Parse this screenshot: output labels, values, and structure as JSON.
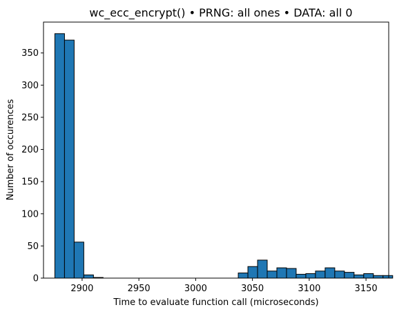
{
  "chart_data": {
    "type": "bar",
    "title": "wc_ecc_encrypt() • PRNG: all ones • DATA: all 0",
    "xlabel": "Time to evaluate function call (microseconds)",
    "ylabel": "Number of occurences",
    "xlim": [
      2866,
      3170
    ],
    "ylim": [
      0,
      398
    ],
    "xticks": [
      2900,
      2950,
      3000,
      3050,
      3100,
      3150
    ],
    "yticks": [
      0,
      50,
      100,
      150,
      200,
      250,
      300,
      350
    ],
    "bin_width": 8.5,
    "bin_start": 2876,
    "values": [
      380,
      370,
      56,
      5,
      1,
      0,
      0,
      0,
      0,
      0,
      0,
      0,
      0,
      0,
      0,
      0,
      0,
      0,
      0,
      8,
      18,
      28,
      11,
      16,
      15,
      6,
      7,
      11,
      16,
      11,
      9,
      5,
      7,
      4,
      4
    ],
    "bar_color": "#1f77b4",
    "edge_color": "#000000",
    "grid": false
  }
}
